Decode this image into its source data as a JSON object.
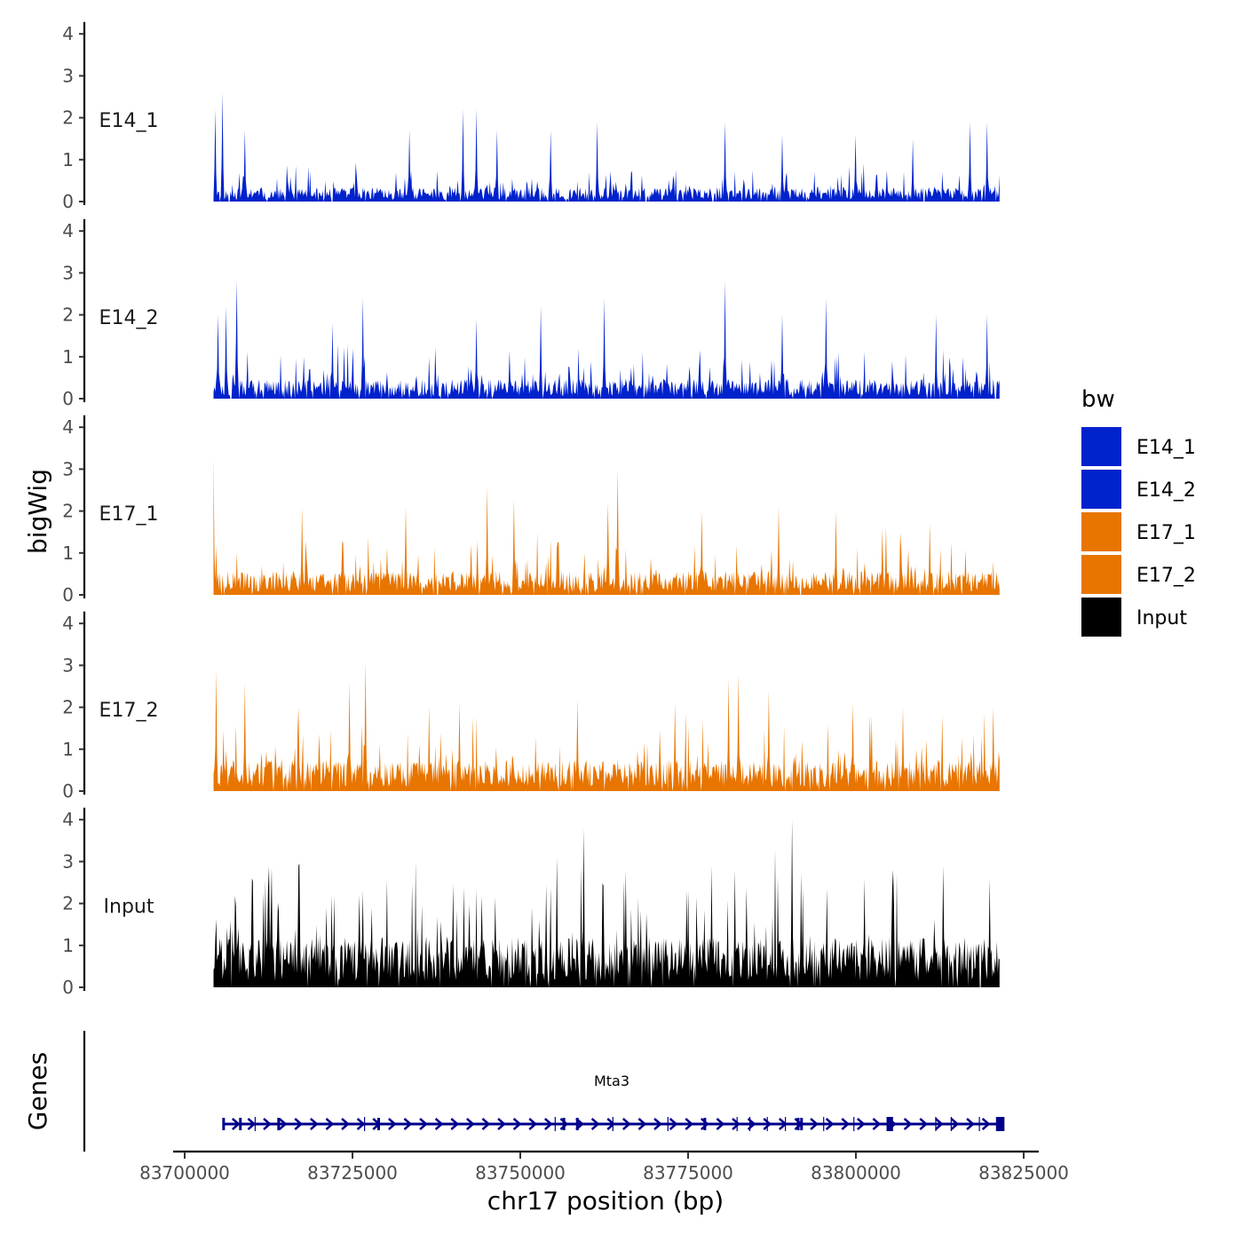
{
  "chart_data": {
    "type": "area",
    "title": "",
    "ylabel": "bigWig",
    "xlabel": "chr17 position (bp)",
    "xlim": [
      83698500,
      83826000
    ],
    "ylim": [
      0,
      4.2
    ],
    "x_ticks": [
      83700000,
      83725000,
      83750000,
      83775000,
      83800000,
      83825000
    ],
    "x_tick_labels": [
      "83700000",
      "83725000",
      "83750000",
      "83775000",
      "83800000",
      "83825000"
    ],
    "y_ticks": [
      0,
      1,
      2,
      3,
      4
    ],
    "y_tick_labels": [
      "0",
      "1",
      "2",
      "3",
      "4"
    ],
    "data_range": [
      83704300,
      83821400
    ],
    "tracks": [
      {
        "name": "E14_1",
        "label": "E14_1",
        "color": "#0022CC",
        "seed": 11,
        "base": 0.28,
        "max_peak": 2.6,
        "peaks": [
          [
            83704500,
            2.2
          ],
          [
            83705600,
            2.6
          ],
          [
            83709000,
            1.7
          ],
          [
            83733500,
            1.7
          ],
          [
            83741500,
            2.2
          ],
          [
            83743500,
            2.2
          ],
          [
            83746500,
            1.7
          ],
          [
            83754500,
            1.7
          ],
          [
            83761500,
            1.9
          ],
          [
            83780500,
            1.9
          ],
          [
            83789000,
            1.6
          ],
          [
            83800000,
            1.6
          ],
          [
            83808500,
            1.5
          ],
          [
            83817000,
            1.9
          ],
          [
            83819500,
            1.9
          ]
        ]
      },
      {
        "name": "E14_2",
        "label": "E14_2",
        "color": "#0022CC",
        "seed": 23,
        "base": 0.4,
        "max_peak": 2.8,
        "peaks": [
          [
            83705000,
            2.0
          ],
          [
            83706200,
            2.2
          ],
          [
            83707700,
            2.8
          ],
          [
            83722000,
            1.8
          ],
          [
            83726500,
            2.4
          ],
          [
            83743500,
            1.9
          ],
          [
            83753000,
            2.2
          ],
          [
            83762500,
            2.4
          ],
          [
            83780500,
            2.8
          ],
          [
            83789000,
            2.0
          ],
          [
            83795500,
            2.4
          ],
          [
            83812000,
            2.0
          ],
          [
            83819500,
            2.0
          ]
        ]
      },
      {
        "name": "E17_1",
        "label": "E17_1",
        "color": "#E87500",
        "seed": 37,
        "base": 0.48,
        "max_peak": 3.3,
        "peaks": [
          [
            83704300,
            3.3
          ],
          [
            83717500,
            2.1
          ],
          [
            83733000,
            2.1
          ],
          [
            83745000,
            2.6
          ],
          [
            83749000,
            2.3
          ],
          [
            83763000,
            2.2
          ],
          [
            83764500,
            3.0
          ],
          [
            83777000,
            2.0
          ],
          [
            83788500,
            2.1
          ],
          [
            83797000,
            2.0
          ],
          [
            83804000,
            1.6
          ],
          [
            83811000,
            1.7
          ]
        ]
      },
      {
        "name": "E17_2",
        "label": "E17_2",
        "color": "#E87500",
        "seed": 53,
        "base": 0.62,
        "max_peak": 3.1,
        "peaks": [
          [
            83704700,
            2.9
          ],
          [
            83709000,
            2.6
          ],
          [
            83717000,
            2.0
          ],
          [
            83724500,
            2.6
          ],
          [
            83727000,
            3.1
          ],
          [
            83741000,
            2.1
          ],
          [
            83758500,
            2.2
          ],
          [
            83773000,
            2.1
          ],
          [
            83781000,
            2.7
          ],
          [
            83782500,
            2.8
          ],
          [
            83787000,
            2.4
          ],
          [
            83799500,
            2.1
          ],
          [
            83807000,
            2.0
          ],
          [
            83820500,
            2.0
          ]
        ]
      },
      {
        "name": "Input",
        "label": "Input",
        "color": "#000000",
        "seed": 71,
        "base": 1.0,
        "max_peak": 4.0,
        "peaks": [
          [
            83710000,
            2.6
          ],
          [
            83712500,
            2.9
          ],
          [
            83717000,
            2.9
          ],
          [
            83726500,
            2.3
          ],
          [
            83755500,
            3.1
          ],
          [
            83759400,
            3.8
          ],
          [
            83778500,
            2.9
          ],
          [
            83782000,
            2.8
          ],
          [
            83790500,
            4.0
          ],
          [
            83805500,
            2.8
          ],
          [
            83813000,
            2.9
          ],
          [
            83820000,
            2.6
          ]
        ]
      }
    ],
    "legend": {
      "title": "bw",
      "position": "right",
      "entries": [
        {
          "label": "E14_1",
          "color": "#0022CC"
        },
        {
          "label": "E14_2",
          "color": "#0022CC"
        },
        {
          "label": "E17_1",
          "color": "#E87500"
        },
        {
          "label": "E17_2",
          "color": "#E87500"
        },
        {
          "label": "Input",
          "color": "#000000"
        }
      ]
    },
    "genes": {
      "label": "Genes",
      "gene_name": "Mta3",
      "color": "#00008B",
      "strand": "+",
      "start": 83705800,
      "end": 83821800,
      "exons": [
        83705800,
        83708300,
        83714000,
        83728900,
        83756500,
        83758500,
        83777500,
        83791400,
        83791900,
        83804900,
        83805200,
        83821200,
        83821800
      ],
      "intron_ticks": [
        83710500,
        83726800,
        83755200,
        83763800,
        83772000,
        83782300,
        83784200,
        83786800,
        83789500,
        83795200,
        83799700,
        83811900,
        83814200,
        83818400
      ]
    }
  }
}
